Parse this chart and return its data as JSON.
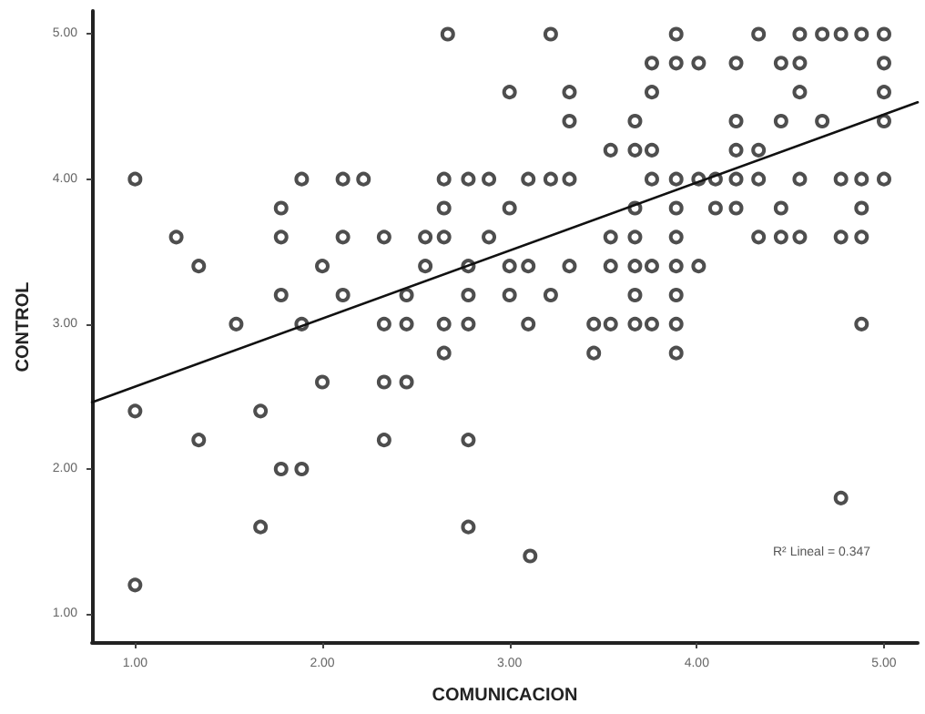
{
  "chart_data": {
    "type": "scatter",
    "xlabel": "COMUNICACION",
    "ylabel": "CONTROL",
    "xlim": [
      0.77,
      5.18
    ],
    "ylim": [
      0.8,
      5.16
    ],
    "xticks": [
      {
        "value": 1,
        "label": "1.00"
      },
      {
        "value": 2,
        "label": "2.00"
      },
      {
        "value": 3,
        "label": "3.00"
      },
      {
        "value": 4,
        "label": "4.00"
      },
      {
        "value": 5,
        "label": "5.00"
      }
    ],
    "yticks": [
      {
        "value": 1,
        "label": "1.00"
      },
      {
        "value": 2,
        "label": "2.00"
      },
      {
        "value": 3,
        "label": "3.00"
      },
      {
        "value": 4,
        "label": "4.00"
      },
      {
        "value": 5,
        "label": "5.00"
      }
    ],
    "grid": false,
    "marker": "circle",
    "annotations": [
      "R² Lineal = 0.347"
    ],
    "series": [
      {
        "color": "#222222",
        "x": [
          2.67,
          3.22,
          3.89,
          4.33,
          4.55,
          4.67,
          4.77,
          4.88,
          5.0,
          3.76,
          3.89,
          4.01,
          4.21,
          4.45,
          4.55,
          5.0,
          3.0,
          3.32,
          3.76,
          4.55,
          5.0,
          3.32,
          3.67,
          4.21,
          4.45,
          4.67,
          5.0,
          3.54,
          3.67,
          3.76,
          4.21,
          4.33,
          1.0,
          1.89,
          2.11,
          2.22,
          2.65,
          2.78,
          2.89,
          3.1,
          3.22,
          3.32,
          3.76,
          3.89,
          4.01,
          4.1,
          4.21,
          4.33,
          4.55,
          4.77,
          4.88,
          5.0,
          1.78,
          2.65,
          3.0,
          3.67,
          3.89,
          4.1,
          4.21,
          4.45,
          4.88,
          1.22,
          1.78,
          2.11,
          2.33,
          2.55,
          2.65,
          2.89,
          3.54,
          3.67,
          3.89,
          4.33,
          4.45,
          4.55,
          4.77,
          4.88,
          1.34,
          2.0,
          2.55,
          2.78,
          3.0,
          3.1,
          3.32,
          3.54,
          3.67,
          3.76,
          3.89,
          4.01,
          1.78,
          2.11,
          2.45,
          2.78,
          3.0,
          3.22,
          3.67,
          3.89,
          1.54,
          1.89,
          2.33,
          2.45,
          2.65,
          2.78,
          3.1,
          3.45,
          3.54,
          3.67,
          3.76,
          3.89,
          4.88,
          2.65,
          3.45,
          3.89,
          2.0,
          2.33,
          2.45,
          1.0,
          1.67,
          1.34,
          2.33,
          2.78,
          1.78,
          1.89,
          4.77,
          1.67,
          2.78,
          3.11,
          1.0
        ],
        "values": [
          5.0,
          5.0,
          5.0,
          5.0,
          5.0,
          5.0,
          5.0,
          5.0,
          5.0,
          4.8,
          4.8,
          4.8,
          4.8,
          4.8,
          4.8,
          4.8,
          4.6,
          4.6,
          4.6,
          4.6,
          4.6,
          4.4,
          4.4,
          4.4,
          4.4,
          4.4,
          4.4,
          4.2,
          4.2,
          4.2,
          4.2,
          4.2,
          4.0,
          4.0,
          4.0,
          4.0,
          4.0,
          4.0,
          4.0,
          4.0,
          4.0,
          4.0,
          4.0,
          4.0,
          4.0,
          4.0,
          4.0,
          4.0,
          4.0,
          4.0,
          4.0,
          4.0,
          3.8,
          3.8,
          3.8,
          3.8,
          3.8,
          3.8,
          3.8,
          3.8,
          3.8,
          3.6,
          3.6,
          3.6,
          3.6,
          3.6,
          3.6,
          3.6,
          3.6,
          3.6,
          3.6,
          3.6,
          3.6,
          3.6,
          3.6,
          3.6,
          3.4,
          3.4,
          3.4,
          3.4,
          3.4,
          3.4,
          3.4,
          3.4,
          3.4,
          3.4,
          3.4,
          3.4,
          3.2,
          3.2,
          3.2,
          3.2,
          3.2,
          3.2,
          3.2,
          3.2,
          3.0,
          3.0,
          3.0,
          3.0,
          3.0,
          3.0,
          3.0,
          3.0,
          3.0,
          3.0,
          3.0,
          3.0,
          3.0,
          2.8,
          2.8,
          2.8,
          2.6,
          2.6,
          2.6,
          2.4,
          2.4,
          2.2,
          2.2,
          2.2,
          2.0,
          2.0,
          1.8,
          1.6,
          1.6,
          1.4,
          1.2
        ]
      },
      {
        "type": "line",
        "color": "#111111",
        "marker": "none",
        "line_style": "solid",
        "x": [
          0.77,
          5.18
        ],
        "values": [
          2.46,
          4.53
        ]
      }
    ]
  }
}
